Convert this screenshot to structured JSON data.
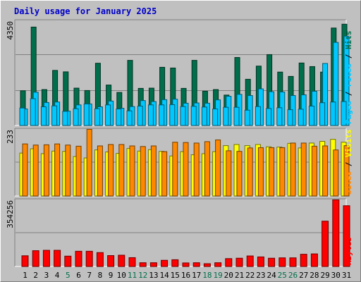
{
  "title": "Daily usage for January 2025",
  "colors": {
    "hits": "#006e4b",
    "files": "#00c8ff",
    "pages": "#00c8ff",
    "visits": "#ffff00",
    "sites": "#ff8800",
    "kbytes": "#ff0000",
    "weekday": "#000000",
    "weekend": "#006e4b"
  },
  "right_labels": {
    "top": [
      "Pages",
      " / ",
      "Files",
      " / ",
      "Hits"
    ],
    "mid": [
      "Sites",
      " / ",
      "Visits"
    ],
    "bot": [
      "KBytes"
    ]
  },
  "chart_data": [
    {
      "type": "bar",
      "name": "hits-files-pages",
      "ymax": 4350,
      "ymax_label": "4350",
      "categories": [
        "1",
        "2",
        "3",
        "4",
        "5",
        "6",
        "7",
        "8",
        "9",
        "10",
        "11",
        "12",
        "13",
        "14",
        "15",
        "16",
        "17",
        "18",
        "19",
        "20",
        "21",
        "22",
        "23",
        "24",
        "25",
        "26",
        "27",
        "28",
        "29",
        "30",
        "31"
      ],
      "series": [
        {
          "name": "Hits",
          "values": [
            1450,
            4110,
            1500,
            2300,
            2240,
            1560,
            1460,
            2600,
            1690,
            1380,
            2720,
            1550,
            1560,
            2430,
            2400,
            1550,
            2720,
            1430,
            1500,
            1270,
            2840,
            1930,
            2480,
            2960,
            2230,
            2050,
            2610,
            2460,
            2230,
            4070,
            4230
          ]
        },
        {
          "name": "Files",
          "values": [
            690,
            1390,
            960,
            980,
            600,
            860,
            900,
            780,
            1020,
            720,
            790,
            1040,
            1000,
            1080,
            1100,
            930,
            940,
            930,
            1070,
            1220,
            1300,
            1250,
            1530,
            1410,
            1400,
            1250,
            1280,
            1430,
            2590,
            3470,
            3730
          ]
        },
        {
          "name": "Pages",
          "values": [
            730,
            1120,
            780,
            820,
            590,
            700,
            900,
            700,
            860,
            690,
            610,
            810,
            860,
            860,
            870,
            790,
            800,
            770,
            690,
            760,
            760,
            640,
            790,
            710,
            740,
            660,
            680,
            810,
            950,
            980,
            1000
          ]
        }
      ]
    },
    {
      "type": "bar",
      "name": "visits-sites",
      "ymax": 233,
      "ymax_label": "233",
      "categories": [
        "1",
        "2",
        "3",
        "4",
        "5",
        "6",
        "7",
        "8",
        "9",
        "10",
        "11",
        "12",
        "13",
        "14",
        "15",
        "16",
        "17",
        "18",
        "19",
        "20",
        "21",
        "22",
        "23",
        "24",
        "25",
        "26",
        "27",
        "28",
        "29",
        "30",
        "31"
      ],
      "series": [
        {
          "name": "Visits",
          "values": [
            150,
            165,
            148,
            157,
            156,
            138,
            133,
            161,
            154,
            149,
            166,
            157,
            162,
            156,
            140,
            155,
            144,
            148,
            155,
            176,
            180,
            176,
            180,
            172,
            171,
            184,
            168,
            185,
            191,
            198,
            188
          ]
        },
        {
          "name": "Sites",
          "values": [
            182,
            178,
            179,
            182,
            178,
            174,
            233,
            175,
            180,
            180,
            175,
            173,
            175,
            155,
            188,
            187,
            185,
            190,
            196,
            158,
            156,
            168,
            169,
            169,
            169,
            185,
            185,
            174,
            175,
            161,
            176
          ]
        }
      ]
    },
    {
      "type": "bar",
      "name": "kbytes",
      "ymax": 354256,
      "ymax_label": "354256",
      "categories": [
        "1",
        "2",
        "3",
        "4",
        "5",
        "6",
        "7",
        "8",
        "9",
        "10",
        "11",
        "12",
        "13",
        "14",
        "15",
        "16",
        "17",
        "18",
        "19",
        "20",
        "21",
        "22",
        "23",
        "24",
        "25",
        "26",
        "27",
        "28",
        "29",
        "30",
        "31"
      ],
      "series": [
        {
          "name": "KBytes",
          "values": [
            57000,
            84000,
            86000,
            86000,
            55000,
            81000,
            81000,
            74000,
            58000,
            60000,
            47000,
            20000,
            20000,
            33000,
            36000,
            19000,
            20000,
            15000,
            20000,
            42000,
            44000,
            56000,
            51000,
            44000,
            46000,
            46000,
            65000,
            67000,
            241000,
            354256,
            323000
          ]
        }
      ]
    }
  ],
  "weekend_days": [
    5,
    11,
    12,
    18,
    19,
    25,
    26
  ]
}
